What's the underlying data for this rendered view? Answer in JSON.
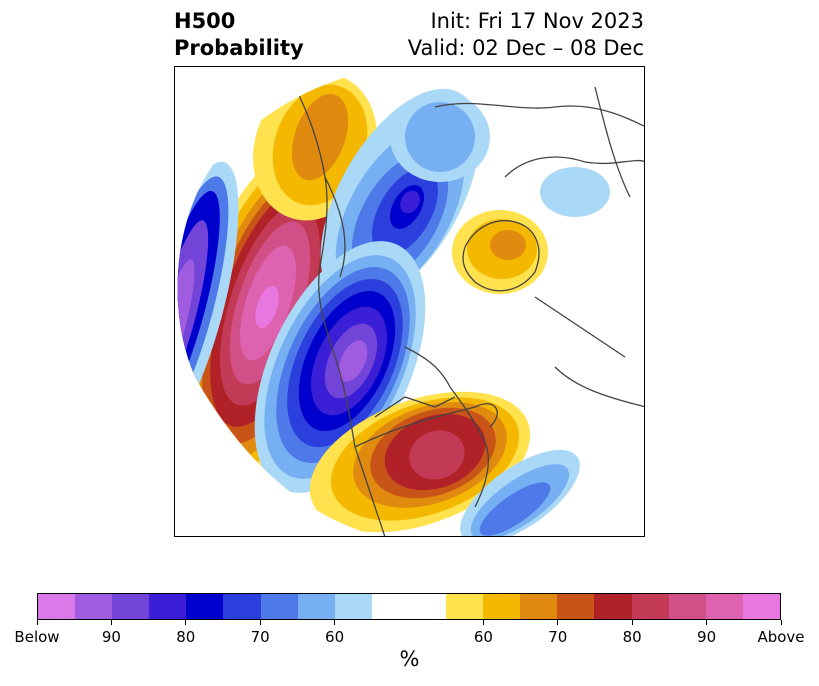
{
  "title": {
    "left_line1": "H500",
    "left_line2": "Probability",
    "right_line1": "Init: Fri 17 Nov 2023",
    "right_line2": "Valid: 02 Dec – 08 Dec"
  },
  "map": {
    "projection": "polar stereographic (North America / Arctic)",
    "features": [
      {
        "name": "strong-positive-anomaly-west-pacific",
        "category": "Above",
        "approx_max": "Above 90"
      },
      {
        "name": "positive-anomaly-eastern-us",
        "category": "Above",
        "approx_max": "80-90"
      },
      {
        "name": "positive-anomaly-alaska",
        "category": "Above",
        "approx_max": "60-70"
      },
      {
        "name": "positive-anomaly-scandinavia",
        "category": "Above",
        "approx_max": "60-70"
      },
      {
        "name": "negative-anomaly-western-canada",
        "category": "Below",
        "approx_max": "Below 90"
      },
      {
        "name": "negative-anomaly-west-of-pacific-ridge",
        "category": "Below",
        "approx_max": "80-90"
      },
      {
        "name": "negative-anomaly-arctic",
        "category": "Below",
        "approx_max": "70-80"
      },
      {
        "name": "negative-anomaly-atlantic",
        "category": "Below",
        "approx_max": "60-70"
      }
    ]
  },
  "colorbar": {
    "colors": [
      "#d97ae8",
      "#a05ce0",
      "#7244d8",
      "#3a1fd6",
      "#0000cc",
      "#2a3fdc",
      "#4d7ae8",
      "#76b0f2",
      "#aad8f7",
      "#ffffff",
      "#ffffff",
      "#ffe24d",
      "#f5b800",
      "#e08a10",
      "#c95418",
      "#b02228",
      "#c23a55",
      "#d25088",
      "#dd62b0",
      "#e878e0"
    ],
    "labels": [
      "Below",
      "90",
      "80",
      "70",
      "60",
      "60",
      "70",
      "80",
      "90",
      "Above"
    ],
    "unit": "%"
  }
}
